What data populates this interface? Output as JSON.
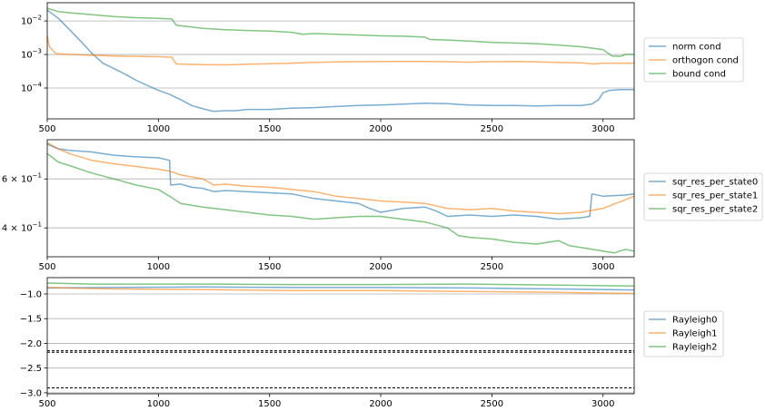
{
  "chart_data": [
    {
      "type": "line",
      "yscale": "log",
      "xlim": [
        500,
        3140
      ],
      "ylim": [
        1.2e-05,
        0.035
      ],
      "x_ticks": [
        500,
        1000,
        1500,
        2000,
        2500,
        3000
      ],
      "y_ticks": [
        {
          "value": 0.01,
          "base": "10",
          "exp": "−2"
        },
        {
          "value": 0.001,
          "base": "10",
          "exp": "−3"
        },
        {
          "value": 0.0001,
          "base": "10",
          "exp": "−4"
        }
      ],
      "grid": "y-major",
      "legend": "right",
      "series": [
        {
          "name": "norm cond",
          "color": "#1f77b4",
          "points": [
            [
              500,
              0.021
            ],
            [
              550,
              0.012
            ],
            [
              600,
              0.0055
            ],
            [
              650,
              0.0025
            ],
            [
              700,
              0.0011
            ],
            [
              750,
              0.00055
            ],
            [
              800,
              0.00038
            ],
            [
              850,
              0.00026
            ],
            [
              900,
              0.00017
            ],
            [
              950,
              0.00012
            ],
            [
              1000,
              8.5e-05
            ],
            [
              1050,
              6.5e-05
            ],
            [
              1100,
              4.5e-05
            ],
            [
              1150,
              3e-05
            ],
            [
              1200,
              2.4e-05
            ],
            [
              1250,
              2e-05
            ],
            [
              1300,
              2.1e-05
            ],
            [
              1350,
              2.1e-05
            ],
            [
              1400,
              2.3e-05
            ],
            [
              1500,
              2.3e-05
            ],
            [
              1600,
              2.5e-05
            ],
            [
              1700,
              2.6e-05
            ],
            [
              1800,
              2.8e-05
            ],
            [
              1900,
              3e-05
            ],
            [
              2000,
              3.1e-05
            ],
            [
              2100,
              3.3e-05
            ],
            [
              2200,
              3.5e-05
            ],
            [
              2300,
              3.4e-05
            ],
            [
              2400,
              3.1e-05
            ],
            [
              2500,
              3e-05
            ],
            [
              2600,
              3e-05
            ],
            [
              2700,
              2.9e-05
            ],
            [
              2800,
              3e-05
            ],
            [
              2900,
              3e-05
            ],
            [
              2950,
              3.3e-05
            ],
            [
              2980,
              4.5e-05
            ],
            [
              3000,
              7.2e-05
            ],
            [
              3030,
              8.5e-05
            ],
            [
              3080,
              9e-05
            ],
            [
              3140,
              9e-05
            ]
          ]
        },
        {
          "name": "orthogon cond",
          "color": "#ff7f0e",
          "points": [
            [
              500,
              0.0035
            ],
            [
              510,
              0.0017
            ],
            [
              540,
              0.00105
            ],
            [
              600,
              0.001
            ],
            [
              700,
              0.00095
            ],
            [
              800,
              0.0009
            ],
            [
              900,
              0.00088
            ],
            [
              1000,
              0.00086
            ],
            [
              1060,
              0.00083
            ],
            [
              1080,
              0.00052
            ],
            [
              1200,
              0.0005
            ],
            [
              1300,
              0.00049
            ],
            [
              1400,
              0.00051
            ],
            [
              1500,
              0.00053
            ],
            [
              1600,
              0.00055
            ],
            [
              1700,
              0.00058
            ],
            [
              1800,
              0.0006
            ],
            [
              1900,
              0.00061
            ],
            [
              2000,
              0.00062
            ],
            [
              2100,
              0.00062
            ],
            [
              2200,
              0.00062
            ],
            [
              2300,
              0.00061
            ],
            [
              2400,
              0.00059
            ],
            [
              2500,
              0.00061
            ],
            [
              2600,
              0.00062
            ],
            [
              2700,
              0.0006
            ],
            [
              2800,
              0.00058
            ],
            [
              2900,
              0.00056
            ],
            [
              2960,
              0.00052
            ],
            [
              3000,
              0.00055
            ],
            [
              3140,
              0.00055
            ]
          ]
        },
        {
          "name": "bound cond",
          "color": "#2ca02c",
          "points": [
            [
              500,
              0.024
            ],
            [
              550,
              0.019
            ],
            [
              600,
              0.0175
            ],
            [
              700,
              0.0155
            ],
            [
              800,
              0.0135
            ],
            [
              900,
              0.0125
            ],
            [
              1000,
              0.012
            ],
            [
              1060,
              0.0115
            ],
            [
              1080,
              0.0075
            ],
            [
              1200,
              0.006
            ],
            [
              1300,
              0.0055
            ],
            [
              1400,
              0.0052
            ],
            [
              1500,
              0.005
            ],
            [
              1600,
              0.0046
            ],
            [
              1650,
              0.004
            ],
            [
              1700,
              0.0042
            ],
            [
              1800,
              0.004
            ],
            [
              1900,
              0.0038
            ],
            [
              2000,
              0.0036
            ],
            [
              2100,
              0.0035
            ],
            [
              2200,
              0.0033
            ],
            [
              2220,
              0.0028
            ],
            [
              2300,
              0.0027
            ],
            [
              2400,
              0.0025
            ],
            [
              2500,
              0.0023
            ],
            [
              2600,
              0.0022
            ],
            [
              2700,
              0.0021
            ],
            [
              2800,
              0.0019
            ],
            [
              2900,
              0.0017
            ],
            [
              3000,
              0.0014
            ],
            [
              3040,
              0.0009
            ],
            [
              3080,
              0.00088
            ],
            [
              3100,
              0.001
            ],
            [
              3140,
              0.001
            ]
          ]
        }
      ]
    },
    {
      "type": "line",
      "yscale": "log",
      "xlim": [
        500,
        3140
      ],
      "ylim": [
        0.315,
        0.83
      ],
      "x_ticks": [
        500,
        1000,
        1500,
        2000,
        2500,
        3000
      ],
      "y_ticks": [
        {
          "value": 0.6,
          "base": "6 × 10",
          "exp": "−1"
        },
        {
          "value": 0.4,
          "base": "4 × 10",
          "exp": "−1"
        }
      ],
      "grid": "y-major",
      "legend": "right",
      "series": [
        {
          "name": "sqr_res_per_state0",
          "color": "#1f77b4",
          "points": [
            [
              500,
              0.8
            ],
            [
              550,
              0.77
            ],
            [
              600,
              0.76
            ],
            [
              700,
              0.75
            ],
            [
              800,
              0.73
            ],
            [
              900,
              0.72
            ],
            [
              1000,
              0.715
            ],
            [
              1050,
              0.7
            ],
            [
              1055,
              0.57
            ],
            [
              1100,
              0.575
            ],
            [
              1150,
              0.56
            ],
            [
              1200,
              0.555
            ],
            [
              1250,
              0.54
            ],
            [
              1300,
              0.545
            ],
            [
              1400,
              0.54
            ],
            [
              1500,
              0.535
            ],
            [
              1600,
              0.53
            ],
            [
              1700,
              0.51
            ],
            [
              1800,
              0.5
            ],
            [
              1900,
              0.49
            ],
            [
              1950,
              0.47
            ],
            [
              2000,
              0.455
            ],
            [
              2100,
              0.47
            ],
            [
              2200,
              0.475
            ],
            [
              2250,
              0.46
            ],
            [
              2300,
              0.44
            ],
            [
              2400,
              0.445
            ],
            [
              2500,
              0.44
            ],
            [
              2600,
              0.445
            ],
            [
              2700,
              0.44
            ],
            [
              2800,
              0.43
            ],
            [
              2900,
              0.435
            ],
            [
              2940,
              0.44
            ],
            [
              2950,
              0.53
            ],
            [
              3000,
              0.52
            ],
            [
              3100,
              0.525
            ],
            [
              3140,
              0.53
            ]
          ]
        },
        {
          "name": "sqr_res_per_state1",
          "color": "#ff7f0e",
          "points": [
            [
              500,
              0.81
            ],
            [
              550,
              0.77
            ],
            [
              600,
              0.74
            ],
            [
              700,
              0.7
            ],
            [
              800,
              0.68
            ],
            [
              900,
              0.665
            ],
            [
              1000,
              0.65
            ],
            [
              1050,
              0.64
            ],
            [
              1100,
              0.62
            ],
            [
              1200,
              0.6
            ],
            [
              1250,
              0.57
            ],
            [
              1300,
              0.575
            ],
            [
              1400,
              0.565
            ],
            [
              1500,
              0.56
            ],
            [
              1600,
              0.55
            ],
            [
              1700,
              0.54
            ],
            [
              1800,
              0.52
            ],
            [
              1900,
              0.51
            ],
            [
              2000,
              0.5
            ],
            [
              2100,
              0.495
            ],
            [
              2200,
              0.49
            ],
            [
              2300,
              0.47
            ],
            [
              2400,
              0.465
            ],
            [
              2500,
              0.47
            ],
            [
              2600,
              0.46
            ],
            [
              2700,
              0.455
            ],
            [
              2800,
              0.45
            ],
            [
              2900,
              0.455
            ],
            [
              3000,
              0.47
            ],
            [
              3100,
              0.505
            ],
            [
              3140,
              0.52
            ]
          ]
        },
        {
          "name": "sqr_res_per_state2",
          "color": "#2ca02c",
          "points": [
            [
              500,
              0.74
            ],
            [
              550,
              0.69
            ],
            [
              600,
              0.67
            ],
            [
              700,
              0.63
            ],
            [
              800,
              0.6
            ],
            [
              900,
              0.57
            ],
            [
              1000,
              0.55
            ],
            [
              1050,
              0.52
            ],
            [
              1100,
              0.49
            ],
            [
              1200,
              0.475
            ],
            [
              1300,
              0.465
            ],
            [
              1400,
              0.455
            ],
            [
              1500,
              0.445
            ],
            [
              1600,
              0.44
            ],
            [
              1700,
              0.43
            ],
            [
              1800,
              0.435
            ],
            [
              1900,
              0.44
            ],
            [
              2000,
              0.44
            ],
            [
              2100,
              0.43
            ],
            [
              2200,
              0.42
            ],
            [
              2300,
              0.4
            ],
            [
              2350,
              0.375
            ],
            [
              2400,
              0.37
            ],
            [
              2500,
              0.365
            ],
            [
              2600,
              0.355
            ],
            [
              2700,
              0.35
            ],
            [
              2800,
              0.36
            ],
            [
              2850,
              0.345
            ],
            [
              2900,
              0.34
            ],
            [
              3000,
              0.33
            ],
            [
              3050,
              0.325
            ],
            [
              3100,
              0.335
            ],
            [
              3140,
              0.33
            ]
          ]
        }
      ]
    },
    {
      "type": "line",
      "yscale": "linear",
      "xlim": [
        500,
        3140
      ],
      "ylim": [
        -3.02,
        -0.67
      ],
      "x_ticks": [
        500,
        1000,
        1500,
        2000,
        2500,
        3000
      ],
      "y_ticks": [
        {
          "value": -1.0,
          "label": "−1.0"
        },
        {
          "value": -1.5,
          "label": "−1.5"
        },
        {
          "value": -2.0,
          "label": "−2.0"
        },
        {
          "value": -2.5,
          "label": "−2.5"
        },
        {
          "value": -3.0,
          "label": "−3.0"
        }
      ],
      "hlines": [
        -2.15,
        -2.18,
        -2.9
      ],
      "grid": "y-major",
      "legend": "right",
      "series": [
        {
          "name": "Rayleigh0",
          "color": "#1f77b4",
          "points": [
            [
              500,
              -0.88
            ],
            [
              800,
              -0.87
            ],
            [
              1200,
              -0.86
            ],
            [
              1600,
              -0.87
            ],
            [
              2000,
              -0.87
            ],
            [
              2400,
              -0.88
            ],
            [
              2800,
              -0.9
            ],
            [
              3140,
              -0.92
            ]
          ]
        },
        {
          "name": "Rayleigh1",
          "color": "#ff7f0e",
          "points": [
            [
              500,
              -0.87
            ],
            [
              800,
              -0.9
            ],
            [
              1200,
              -0.91
            ],
            [
              1600,
              -0.93
            ],
            [
              2000,
              -0.93
            ],
            [
              2400,
              -0.95
            ],
            [
              2800,
              -0.97
            ],
            [
              3140,
              -0.99
            ]
          ]
        },
        {
          "name": "Rayleigh2",
          "color": "#2ca02c",
          "points": [
            [
              500,
              -0.78
            ],
            [
              700,
              -0.8
            ],
            [
              1200,
              -0.8
            ],
            [
              1600,
              -0.81
            ],
            [
              2000,
              -0.81
            ],
            [
              2400,
              -0.8
            ],
            [
              2800,
              -0.82
            ],
            [
              3140,
              -0.84
            ]
          ]
        }
      ]
    }
  ]
}
